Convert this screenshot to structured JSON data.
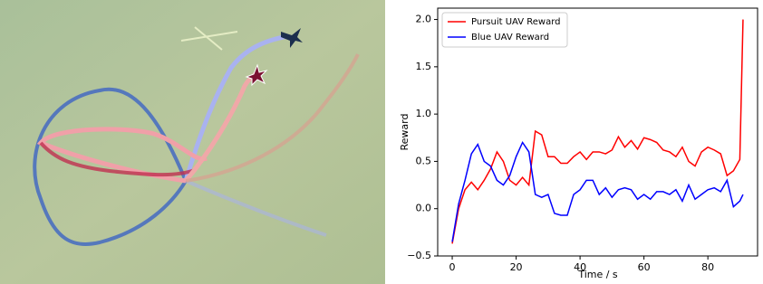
{
  "chart_data": {
    "type": "line",
    "x": [
      0,
      2,
      4,
      6,
      8,
      10,
      12,
      14,
      16,
      18,
      20,
      22,
      24,
      26,
      28,
      30,
      32,
      34,
      36,
      38,
      40,
      42,
      44,
      46,
      48,
      50,
      52,
      54,
      56,
      58,
      60,
      62,
      64,
      66,
      68,
      70,
      72,
      74,
      76,
      78,
      80,
      82,
      84,
      86,
      88,
      90,
      91
    ],
    "series": [
      {
        "name": "Pursuit UAV Reward",
        "color": "#ff0000",
        "values": [
          -0.37,
          0.0,
          0.2,
          0.28,
          0.2,
          0.3,
          0.42,
          0.6,
          0.5,
          0.3,
          0.25,
          0.33,
          0.25,
          0.82,
          0.78,
          0.55,
          0.55,
          0.48,
          0.48,
          0.55,
          0.6,
          0.52,
          0.6,
          0.6,
          0.58,
          0.62,
          0.76,
          0.65,
          0.72,
          0.63,
          0.75,
          0.73,
          0.7,
          0.62,
          0.6,
          0.55,
          0.65,
          0.5,
          0.45,
          0.6,
          0.65,
          0.62,
          0.58,
          0.35,
          0.4,
          0.52,
          2.0
        ]
      },
      {
        "name": "Blue UAV Reward",
        "color": "#0000ff",
        "values": [
          -0.35,
          0.05,
          0.3,
          0.58,
          0.68,
          0.5,
          0.45,
          0.3,
          0.25,
          0.35,
          0.55,
          0.7,
          0.6,
          0.15,
          0.12,
          0.15,
          -0.05,
          -0.07,
          -0.07,
          0.15,
          0.2,
          0.3,
          0.3,
          0.15,
          0.22,
          0.12,
          0.2,
          0.22,
          0.2,
          0.1,
          0.15,
          0.1,
          0.18,
          0.18,
          0.15,
          0.2,
          0.08,
          0.25,
          0.1,
          0.15,
          0.2,
          0.22,
          0.18,
          0.3,
          0.02,
          0.08,
          0.15
        ]
      }
    ],
    "xlabel": "Time / s",
    "ylabel": "Reward",
    "xlim": [
      -4.55,
      95.55
    ],
    "ylim": [
      -0.5,
      2.12
    ],
    "xticks": [
      0,
      20,
      40,
      60,
      80
    ],
    "yticks": [
      {
        "value": -0.5,
        "label": "−0.5"
      },
      {
        "value": 0,
        "label": "0.0"
      },
      {
        "value": 0.5,
        "label": "0.5"
      },
      {
        "value": 1,
        "label": "1.0"
      },
      {
        "value": 1.5,
        "label": "1.5"
      },
      {
        "value": 2,
        "label": "2.0"
      }
    ],
    "legend": "upper left"
  }
}
